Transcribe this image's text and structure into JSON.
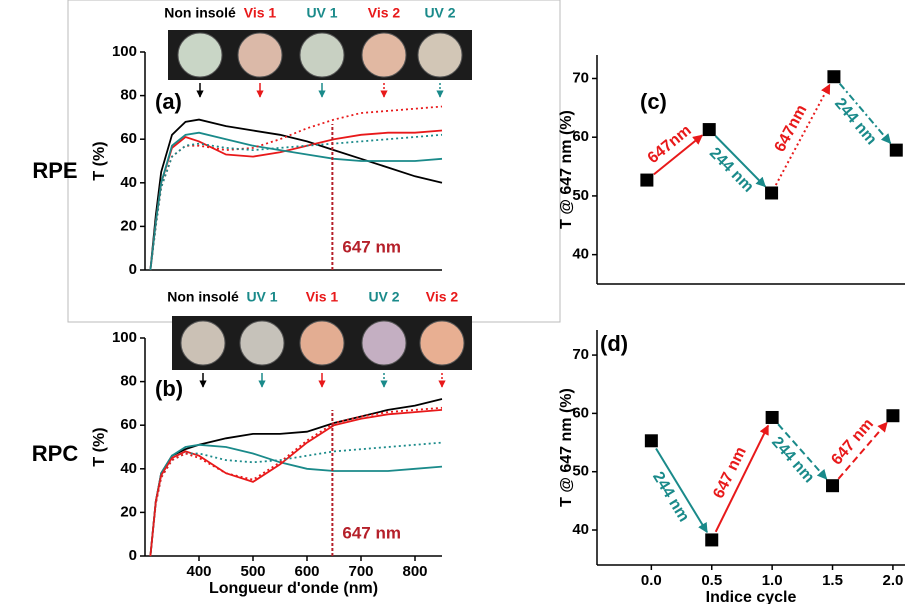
{
  "row_labels": [
    "RPE",
    "RPC"
  ],
  "chart_data": [
    {
      "type": "line",
      "panel_label": "(a)",
      "ylabel": "T (%)",
      "xlim": [
        300,
        850
      ],
      "ylim": [
        0,
        100
      ],
      "yticks": [
        0,
        20,
        40,
        60,
        80,
        100
      ],
      "x": [
        310,
        320,
        330,
        350,
        375,
        400,
        450,
        500,
        550,
        600,
        650,
        700,
        750,
        800,
        850
      ],
      "series": [
        {
          "name": "Non insolé",
          "color": "#000000",
          "style": "solid",
          "values": [
            0,
            25,
            45,
            62,
            68,
            69,
            66,
            64,
            62,
            59,
            55,
            51,
            47,
            43,
            40
          ]
        },
        {
          "name": "Vis 1",
          "color": "#e8191a",
          "style": "solid",
          "values": [
            0,
            22,
            40,
            56,
            61,
            59,
            53,
            52,
            54,
            57,
            60,
            62,
            63,
            63,
            64
          ]
        },
        {
          "name": "UV 1",
          "color": "#1a8a8a",
          "style": "solid",
          "values": [
            0,
            22,
            40,
            57,
            62,
            63,
            60,
            57,
            55,
            53,
            51,
            50,
            50,
            50,
            51
          ]
        },
        {
          "name": "Vis 2",
          "color": "#e8191a",
          "style": "dotted",
          "values": [
            0,
            20,
            38,
            52,
            57,
            57,
            55,
            56,
            60,
            65,
            69,
            72,
            73,
            74,
            75
          ]
        },
        {
          "name": "UV 2",
          "color": "#1a8a8a",
          "style": "dotted",
          "values": [
            0,
            20,
            38,
            52,
            57,
            58,
            56,
            55,
            56,
            57,
            58,
            59,
            60,
            61,
            62
          ]
        }
      ],
      "sample_colors": [
        "#c9d6c6",
        "#dbb9a8",
        "#c8d0c2",
        "#e1b8a2",
        "#d2c6b6"
      ],
      "vline": 647,
      "vline_label": "647 nm",
      "vline_color": "#b5202a"
    },
    {
      "type": "line",
      "panel_label": "(b)",
      "ylabel": "T (%)",
      "xlabel": "Longueur d'onde (nm)",
      "xlim": [
        300,
        850
      ],
      "xticks": [
        400,
        500,
        600,
        700,
        800
      ],
      "ylim": [
        0,
        100
      ],
      "yticks": [
        0,
        20,
        40,
        60,
        80,
        100
      ],
      "x": [
        310,
        320,
        330,
        350,
        375,
        400,
        450,
        500,
        550,
        600,
        650,
        700,
        750,
        800,
        850
      ],
      "series": [
        {
          "name": "Non insolé",
          "color": "#000000",
          "style": "solid",
          "values": [
            0,
            25,
            38,
            46,
            49,
            51,
            54,
            56,
            56,
            57,
            61,
            64,
            67,
            69,
            72
          ]
        },
        {
          "name": "UV 1",
          "color": "#1a8a8a",
          "style": "solid",
          "values": [
            0,
            25,
            38,
            46,
            50,
            51,
            50,
            47,
            43,
            40,
            39,
            39,
            39,
            40,
            41
          ]
        },
        {
          "name": "Vis 1",
          "color": "#e8191a",
          "style": "solid",
          "values": [
            0,
            25,
            37,
            45,
            48,
            46,
            38,
            34,
            42,
            52,
            60,
            63,
            65,
            66,
            67
          ]
        },
        {
          "name": "UV 2",
          "color": "#1a8a8a",
          "style": "dotted",
          "values": [
            0,
            24,
            36,
            44,
            47,
            47,
            44,
            43,
            44,
            46,
            48,
            49,
            50,
            51,
            52
          ]
        },
        {
          "name": "Vis 2",
          "color": "#e8191a",
          "style": "dotted",
          "values": [
            0,
            24,
            36,
            44,
            47,
            45,
            38,
            35,
            43,
            53,
            61,
            64,
            66,
            67,
            68
          ]
        }
      ],
      "sample_colors": [
        "#cbc1b5",
        "#c6c2ba",
        "#e3ad92",
        "#c4afc2",
        "#e8af92"
      ],
      "vline": 647,
      "vline_label": "647 nm",
      "vline_color": "#b5202a"
    },
    {
      "type": "scatter",
      "panel_label": "(c)",
      "ylabel": "T @ 647 nm (%)",
      "xlim": [
        -0.4,
        2.07
      ],
      "ylim": [
        35,
        74
      ],
      "yticks": [
        40,
        50,
        60,
        70
      ],
      "x": [
        0,
        0.5,
        1,
        1.5,
        2
      ],
      "values": [
        52.7,
        61.3,
        50.5,
        70.3,
        57.8
      ],
      "marker_color": "#000000",
      "arrows": [
        {
          "label": "647nm",
          "color": "#e8191a",
          "style": "solid"
        },
        {
          "label": "244 nm",
          "color": "#1a8a8a",
          "style": "solid"
        },
        {
          "label": "647nm",
          "color": "#e8191a",
          "style": "dotted"
        },
        {
          "label": "244 nm",
          "color": "#1a8a8a",
          "style": "dashdot"
        }
      ]
    },
    {
      "type": "scatter",
      "panel_label": "(d)",
      "ylabel": "T @ 647 nm (%)",
      "xlabel": "Indice cycle",
      "xlim": [
        -0.45,
        2.1
      ],
      "xticks": [
        {
          "value": 0,
          "label": "0.0"
        },
        0.5,
        {
          "value": 1,
          "label": "1.0"
        },
        1.5,
        {
          "value": 2,
          "label": "2.0"
        }
      ],
      "ylim": [
        34,
        74.3
      ],
      "yticks": [
        40,
        50,
        60,
        70
      ],
      "x": [
        0,
        0.5,
        1,
        1.5,
        2
      ],
      "values": [
        55.3,
        38.3,
        59.3,
        47.6,
        59.6
      ],
      "marker_color": "#000000",
      "arrows": [
        {
          "label": "244 nm",
          "color": "#1a8a8a",
          "style": "solid"
        },
        {
          "label": "647 nm",
          "color": "#e8191a",
          "style": "solid"
        },
        {
          "label": "244 nm",
          "color": "#1a8a8a",
          "style": "dashed"
        },
        {
          "label": "647 nm",
          "color": "#e8191a",
          "style": "dashed"
        }
      ]
    }
  ]
}
